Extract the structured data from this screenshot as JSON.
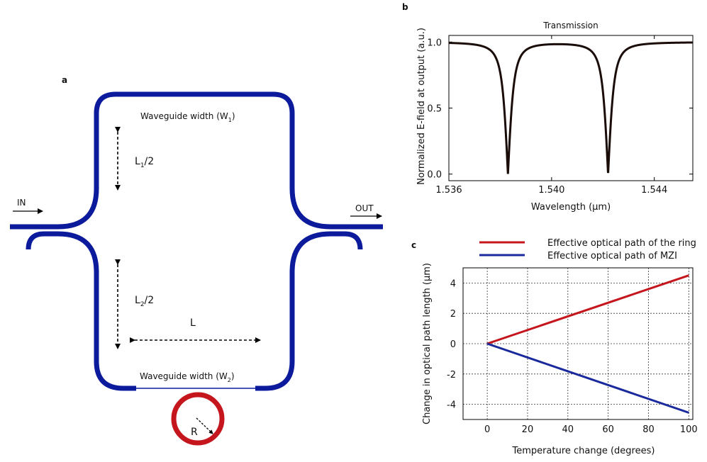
{
  "panel_a": {
    "label": "a",
    "in_label": "IN",
    "out_label": "OUT",
    "top_waveguide": "Waveguide width (W",
    "top_waveguide_sub": "1",
    "bottom_waveguide": "Waveguide width (W",
    "bottom_waveguide_sub": "2",
    "l1_main": "L",
    "l1_sub": "1",
    "l1_tail": "/2",
    "l2_main": "L",
    "l2_sub": "2",
    "l2_tail": "/2",
    "l_label": "L",
    "r_label": "R",
    "colors": {
      "waveguide": "#0c1a9c",
      "ring": "#c4161c"
    }
  },
  "panel_b": {
    "label": "b",
    "title": "Transmission",
    "xlabel": "Wavelength (μm)",
    "ylabel": "Normalized E-field at output (a.u.)",
    "xticks": [
      "1.536",
      "1.540",
      "1.544"
    ],
    "yticks": [
      "0.0",
      "0.5",
      "1.0"
    ]
  },
  "panel_c": {
    "label": "c",
    "xlabel": "Temperature change (degrees)",
    "ylabel": "Change in optical path length (μm)",
    "xticks": [
      "0",
      "20",
      "40",
      "60",
      "80",
      "100"
    ],
    "yticks": [
      "-4",
      "-2",
      "0",
      "2",
      "4"
    ],
    "legend": [
      {
        "name": "Effective optical path of the ring",
        "color": "#c4161c"
      },
      {
        "name": "Effective optical path of MZI",
        "color": "#1a2a9c"
      }
    ]
  },
  "chart_data": [
    {
      "type": "line",
      "title": "Transmission",
      "xlabel": "Wavelength (μm)",
      "ylabel": "Normalized E-field at output (a.u.)",
      "xlim": [
        1.536,
        1.5455
      ],
      "ylim": [
        -0.05,
        1.05
      ],
      "resonances": [
        1.5383,
        1.5422
      ],
      "baseline": 1.0,
      "dip_min": 0.0,
      "linewidth": 0.00025,
      "series": [
        {
          "color": "#1a0c08"
        }
      ]
    },
    {
      "type": "line",
      "xlabel": "Temperature change (degrees)",
      "ylabel": "Change in optical path length (μm)",
      "xlim": [
        -12,
        102
      ],
      "ylim": [
        -5,
        5
      ],
      "grid": true,
      "legend_position": "top",
      "series": [
        {
          "name": "Effective optical path of the ring",
          "color": "#c4161c",
          "x": [
            0,
            100
          ],
          "y": [
            0,
            4.5
          ]
        },
        {
          "name": "Effective optical path of MZI",
          "color": "#1a2a9c",
          "x": [
            0,
            100
          ],
          "y": [
            0,
            -4.55
          ]
        }
      ]
    }
  ]
}
